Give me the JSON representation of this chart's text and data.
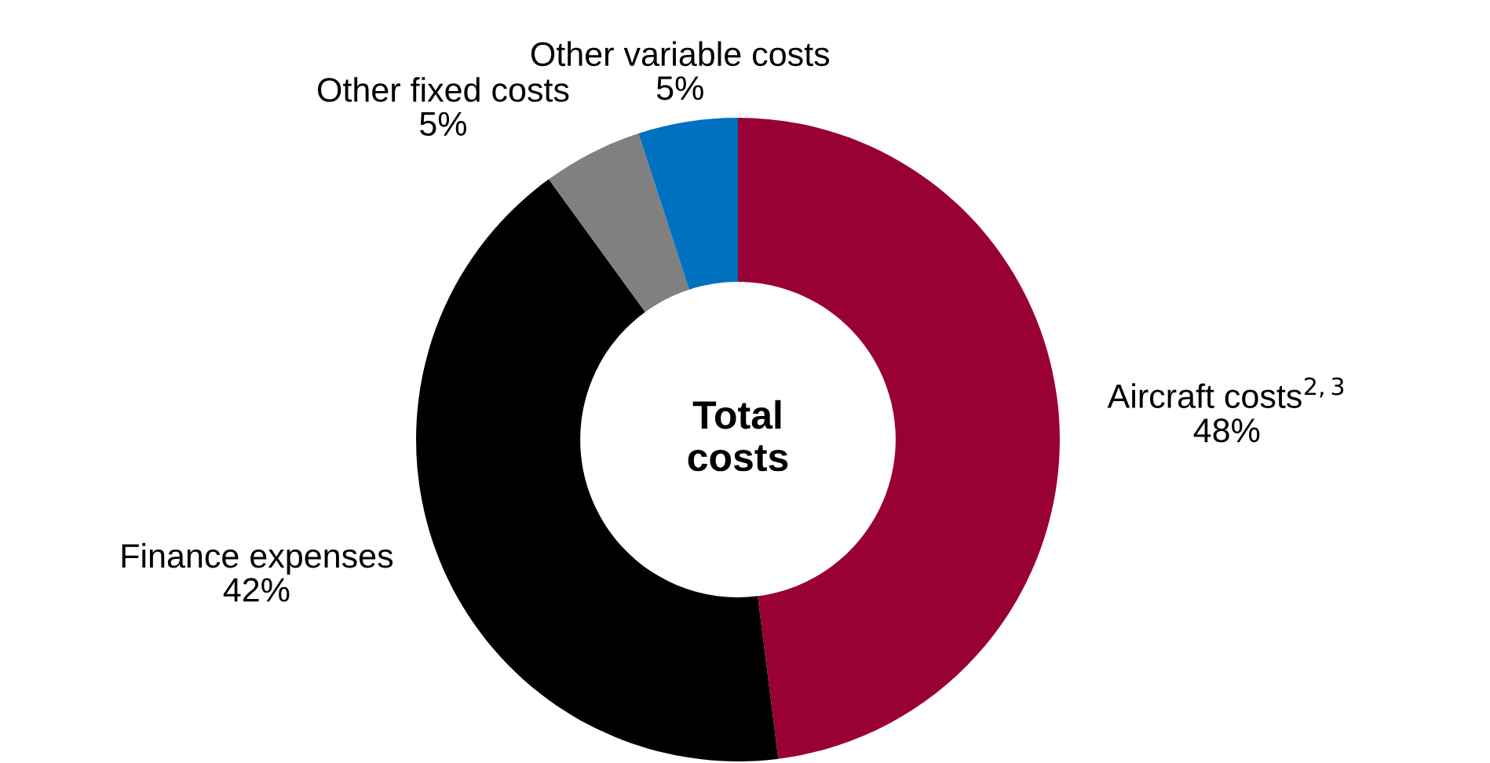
{
  "chart_data": {
    "type": "donut",
    "categories": [
      "Aircraft costs$^{2,3}$",
      "Finance expenses",
      "Other fixed costs",
      "Other variable costs"
    ],
    "values": [
      48,
      42,
      5,
      5
    ],
    "colors": [
      "#990033",
      "#000000",
      "#808080",
      "#0070c0"
    ],
    "value_labels": [
      "48%",
      "42%",
      "5%",
      "5%"
    ],
    "annotations": [
      "Total\ncosts"
    ]
  }
}
